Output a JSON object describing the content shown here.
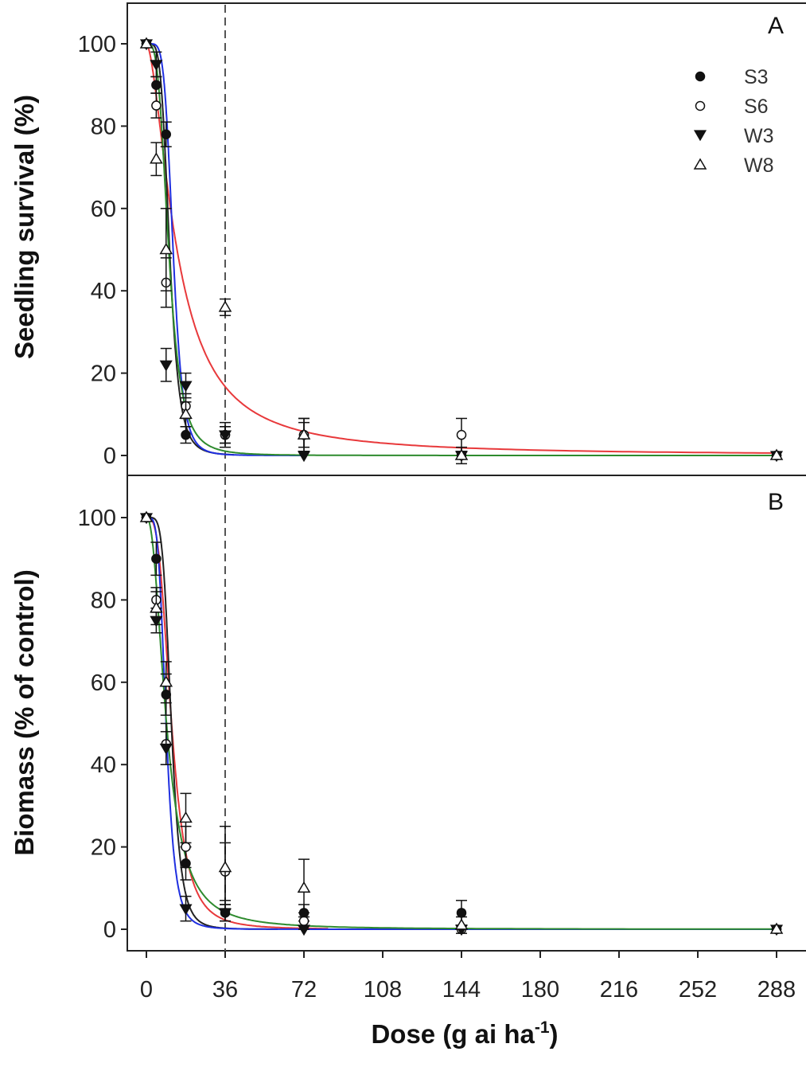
{
  "figure": {
    "xlabel": "Dose (g ai ha",
    "xlabel_sup": "-1",
    "xlabel_close": ")",
    "x_tick_labels": [
      "0",
      "36",
      "72",
      "108",
      "144",
      "180",
      "216",
      "252",
      "288"
    ],
    "y_tick_labels": [
      "0",
      "20",
      "40",
      "60",
      "80",
      "100"
    ],
    "reference_line_x": 36,
    "legend": [
      {
        "label": "S3",
        "marker": "filled-circle"
      },
      {
        "label": "S6",
        "marker": "open-circle"
      },
      {
        "label": "W3",
        "marker": "filled-triangle-down"
      },
      {
        "label": "W8",
        "marker": "open-triangle-up"
      }
    ],
    "curve_colors": {
      "S3": "#e8393b",
      "S6": "#222222",
      "W3": "#1f2fe0",
      "W8": "#2e8b2e"
    }
  },
  "chart_data": [
    {
      "type": "scatter",
      "panel": "A",
      "ylabel": "Seedling survival (%)",
      "xlim": [
        -8,
        296
      ],
      "ylim": [
        -5,
        110
      ],
      "xticks": [
        0,
        36,
        72,
        108,
        144,
        180,
        216,
        252,
        288
      ],
      "yticks": [
        0,
        20,
        40,
        60,
        80,
        100
      ],
      "x": [
        0,
        4.5,
        9,
        18,
        36,
        72,
        144,
        288
      ],
      "series": [
        {
          "name": "S3",
          "values": [
            100,
            90,
            78,
            5,
            5,
            5,
            0,
            0
          ],
          "err": [
            0,
            2,
            3,
            2,
            2,
            3,
            2,
            0
          ],
          "curve": {
            "model": "log-logistic",
            "b": 1.7,
            "ed50": 14,
            "max_x": 288
          }
        },
        {
          "name": "S6",
          "values": [
            100,
            85,
            42,
            12,
            5,
            5,
            5,
            0
          ],
          "err": [
            0,
            3,
            6,
            3,
            3,
            4,
            4,
            0
          ],
          "curve": {
            "model": "log-logistic",
            "b": 4.8,
            "ed50": 10.6,
            "max_x": 40
          }
        },
        {
          "name": "W3",
          "values": [
            100,
            95,
            22,
            17,
            5,
            0,
            0,
            0
          ],
          "err": [
            0,
            3,
            4,
            3,
            2,
            0,
            0,
            0
          ],
          "curve": {
            "model": "log-logistic",
            "b": 5.5,
            "ed50": 12.2,
            "max_x": 72
          }
        },
        {
          "name": "W8",
          "values": [
            100,
            72,
            50,
            10,
            36,
            5,
            0,
            0
          ],
          "err": [
            0,
            4,
            10,
            3,
            2,
            4,
            0,
            0
          ],
          "curve": {
            "model": "log-logistic",
            "b": 3.6,
            "ed50": 10.2,
            "max_x": 288
          }
        }
      ]
    },
    {
      "type": "scatter",
      "panel": "B",
      "ylabel": "Biomass (% of control)",
      "xlim": [
        -8,
        296
      ],
      "ylim": [
        -5,
        110
      ],
      "xticks": [
        0,
        36,
        72,
        108,
        144,
        180,
        216,
        252,
        288
      ],
      "yticks": [
        0,
        20,
        40,
        60,
        80,
        100
      ],
      "x": [
        0,
        4.5,
        9,
        18,
        36,
        72,
        144,
        288
      ],
      "series": [
        {
          "name": "S3",
          "values": [
            100,
            90,
            57,
            16,
            4,
            4,
            4,
            0
          ],
          "err": [
            0,
            4,
            5,
            4,
            2,
            2,
            3,
            0
          ],
          "curve": {
            "model": "log-logistic",
            "b": 3.3,
            "ed50": 11.5,
            "max_x": 83
          }
        },
        {
          "name": "S6",
          "values": [
            100,
            80,
            45,
            20,
            14,
            2,
            0,
            0
          ],
          "err": [
            0,
            3,
            5,
            5,
            7,
            2,
            0,
            0
          ],
          "curve": {
            "model": "log-logistic",
            "b": 5.2,
            "ed50": 11.4,
            "max_x": 60
          }
        },
        {
          "name": "W3",
          "values": [
            100,
            75,
            44,
            5,
            4,
            0,
            0,
            0
          ],
          "err": [
            0,
            3,
            4,
            3,
            2,
            0,
            0,
            0
          ],
          "curve": {
            "model": "log-logistic",
            "b": 4.5,
            "ed50": 9.0,
            "max_x": 288
          }
        },
        {
          "name": "W8",
          "values": [
            100,
            78,
            60,
            27,
            15,
            10,
            1,
            0
          ],
          "err": [
            0,
            4,
            5,
            6,
            10,
            7,
            2,
            0
          ],
          "curve": {
            "model": "log-logistic",
            "b": 2.3,
            "ed50": 9.2,
            "max_x": 288
          }
        }
      ]
    }
  ]
}
